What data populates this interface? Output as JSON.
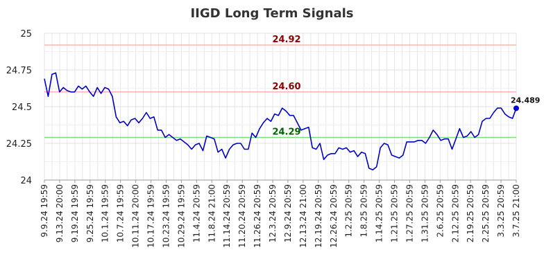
{
  "chart_data": {
    "type": "line",
    "title": "IIGD Long Term Signals",
    "xlabel": "",
    "ylabel": "",
    "ylim": [
      24,
      25
    ],
    "grid": true,
    "y_ticks": [
      "24",
      "24.25",
      "24.5",
      "24.75",
      "25"
    ],
    "x_tick_labels": [
      "9.9.24 19:59",
      "9.13.24 20:00",
      "9.19.24 19:59",
      "9.25.24 19:59",
      "10.1.24 19:59",
      "10.7.24 19:59",
      "10.11.24 20:00",
      "10.17.24 19:59",
      "10.23.24 19:59",
      "10.29.24 19:59",
      "11.4.24 20:59",
      "11.8.24 21:00",
      "11.14.24 20:59",
      "11.20.24 20:59",
      "11.26.24 20:59",
      "12.3.24 20:59",
      "12.9.24 20:59",
      "12.13.24 21:00",
      "12.19.24 20:59",
      "12.26.24 20:59",
      "1.2.25 20:59",
      "1.8.25 20:59",
      "1.14.25 20:59",
      "1.21.25 20:59",
      "1.27.25 20:59",
      "1.31.25 20:59",
      "2.6.25 20:59",
      "2.12.25 20:59",
      "2.19.25 20:59",
      "2.25.25 20:59",
      "3.3.25 20:59",
      "3.7.25 21:00"
    ],
    "reference_lines": [
      {
        "value": 24.92,
        "label": "24.92",
        "line_color": "#ffb3b3",
        "label_color": "#8b0000"
      },
      {
        "value": 24.6,
        "label": "24.60",
        "line_color": "#ffb3b3",
        "label_color": "#8b0000"
      },
      {
        "value": 24.29,
        "label": "24.29",
        "line_color": "#7ddc7d",
        "label_color": "#006400"
      }
    ],
    "series": [
      {
        "color": "#0000cc",
        "values": [
          24.69,
          24.57,
          24.72,
          24.73,
          24.6,
          24.63,
          24.61,
          24.6,
          24.6,
          24.64,
          24.62,
          24.64,
          24.6,
          24.57,
          24.63,
          24.59,
          24.63,
          24.62,
          24.57,
          24.43,
          24.39,
          24.4,
          24.37,
          24.41,
          24.42,
          24.39,
          24.42,
          24.46,
          24.42,
          24.43,
          24.34,
          24.34,
          24.29,
          24.31,
          24.29,
          24.27,
          24.28,
          24.26,
          24.24,
          24.21,
          24.24,
          24.25,
          24.2,
          24.3,
          24.29,
          24.28,
          24.19,
          24.21,
          24.15,
          24.21,
          24.24,
          24.25,
          24.25,
          24.21,
          24.21,
          24.32,
          24.29,
          24.35,
          24.39,
          24.42,
          24.4,
          24.45,
          24.44,
          24.49,
          24.47,
          24.44,
          24.44,
          24.39,
          24.34,
          24.35,
          24.36,
          24.22,
          24.21,
          24.25,
          24.14,
          24.17,
          24.18,
          24.18,
          24.22,
          24.21,
          24.22,
          24.19,
          24.2,
          24.16,
          24.19,
          24.18,
          24.08,
          24.07,
          24.09,
          24.22,
          24.25,
          24.24,
          24.17,
          24.16,
          24.15,
          24.17,
          24.26,
          24.26,
          24.26,
          24.27,
          24.27,
          24.25,
          24.29,
          24.34,
          24.31,
          24.27,
          24.28,
          24.28,
          24.21,
          24.28,
          24.35,
          24.29,
          24.3,
          24.33,
          24.29,
          24.31,
          24.4,
          24.42,
          24.42,
          24.46,
          24.49,
          24.49,
          24.45,
          24.43,
          24.42,
          24.489
        ]
      }
    ],
    "last_value_label": "24.489"
  }
}
